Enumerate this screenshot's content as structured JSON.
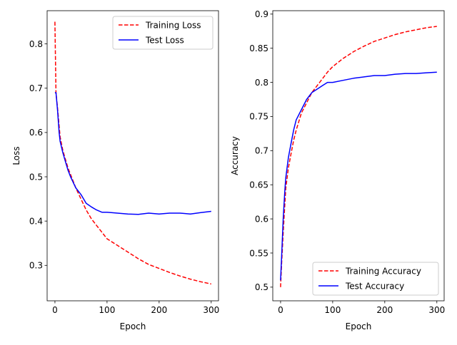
{
  "chart_data": [
    {
      "type": "line",
      "xlabel": "Epoch",
      "ylabel": "Loss",
      "xlim": [
        -15,
        314
      ],
      "ylim": [
        0.22,
        0.875
      ],
      "xticks": [
        0,
        100,
        200,
        300
      ],
      "yticks": [
        0.3,
        0.4,
        0.5,
        0.6,
        0.7,
        0.8
      ],
      "grid": false,
      "legend_position": "top-right",
      "series": [
        {
          "name": "Training Loss",
          "color": "#ff0000",
          "style": "dashed",
          "x": [
            0,
            2,
            5,
            8,
            10,
            15,
            20,
            25,
            30,
            40,
            50,
            60,
            70,
            80,
            90,
            100,
            120,
            140,
            160,
            180,
            200,
            220,
            240,
            260,
            280,
            300
          ],
          "y": [
            0.85,
            0.69,
            0.655,
            0.615,
            0.59,
            0.56,
            0.54,
            0.52,
            0.505,
            0.475,
            0.45,
            0.425,
            0.405,
            0.39,
            0.375,
            0.36,
            0.345,
            0.33,
            0.315,
            0.302,
            0.293,
            0.284,
            0.276,
            0.269,
            0.263,
            0.258
          ]
        },
        {
          "name": "Test Loss",
          "color": "#0000ff",
          "style": "solid",
          "x": [
            0,
            2,
            5,
            8,
            10,
            15,
            20,
            25,
            30,
            40,
            50,
            60,
            70,
            80,
            90,
            100,
            120,
            140,
            160,
            180,
            200,
            220,
            240,
            260,
            280,
            300
          ],
          "y": [
            0.69,
            0.69,
            0.65,
            0.6,
            0.58,
            0.555,
            0.535,
            0.515,
            0.5,
            0.475,
            0.46,
            0.44,
            0.432,
            0.425,
            0.42,
            0.42,
            0.418,
            0.416,
            0.415,
            0.418,
            0.416,
            0.418,
            0.418,
            0.416,
            0.419,
            0.422
          ]
        }
      ]
    },
    {
      "type": "line",
      "xlabel": "Epoch",
      "ylabel": "Accuracy",
      "xlim": [
        -15,
        314
      ],
      "ylim": [
        0.48,
        0.905
      ],
      "xticks": [
        0,
        100,
        200,
        300
      ],
      "yticks": [
        0.5,
        0.55,
        0.6,
        0.65,
        0.7,
        0.75,
        0.8,
        0.85,
        0.9
      ],
      "grid": false,
      "legend_position": "bottom-right",
      "series": [
        {
          "name": "Training Accuracy",
          "color": "#ff0000",
          "style": "dashed",
          "x": [
            0,
            2,
            5,
            8,
            10,
            15,
            20,
            25,
            30,
            40,
            50,
            60,
            70,
            80,
            90,
            100,
            120,
            140,
            160,
            180,
            200,
            220,
            240,
            260,
            280,
            300
          ],
          "y": [
            0.5,
            0.535,
            0.58,
            0.62,
            0.645,
            0.675,
            0.695,
            0.715,
            0.73,
            0.755,
            0.77,
            0.785,
            0.795,
            0.805,
            0.815,
            0.823,
            0.835,
            0.845,
            0.853,
            0.86,
            0.865,
            0.87,
            0.874,
            0.877,
            0.88,
            0.882
          ]
        },
        {
          "name": "Test Accuracy",
          "color": "#0000ff",
          "style": "solid",
          "x": [
            0,
            2,
            5,
            8,
            10,
            15,
            20,
            25,
            30,
            40,
            50,
            60,
            70,
            80,
            90,
            100,
            120,
            140,
            160,
            180,
            200,
            220,
            240,
            260,
            280,
            300
          ],
          "y": [
            0.51,
            0.545,
            0.6,
            0.64,
            0.66,
            0.69,
            0.71,
            0.73,
            0.745,
            0.76,
            0.775,
            0.785,
            0.79,
            0.795,
            0.8,
            0.8,
            0.803,
            0.806,
            0.808,
            0.81,
            0.81,
            0.812,
            0.813,
            0.813,
            0.814,
            0.815
          ]
        }
      ]
    }
  ]
}
